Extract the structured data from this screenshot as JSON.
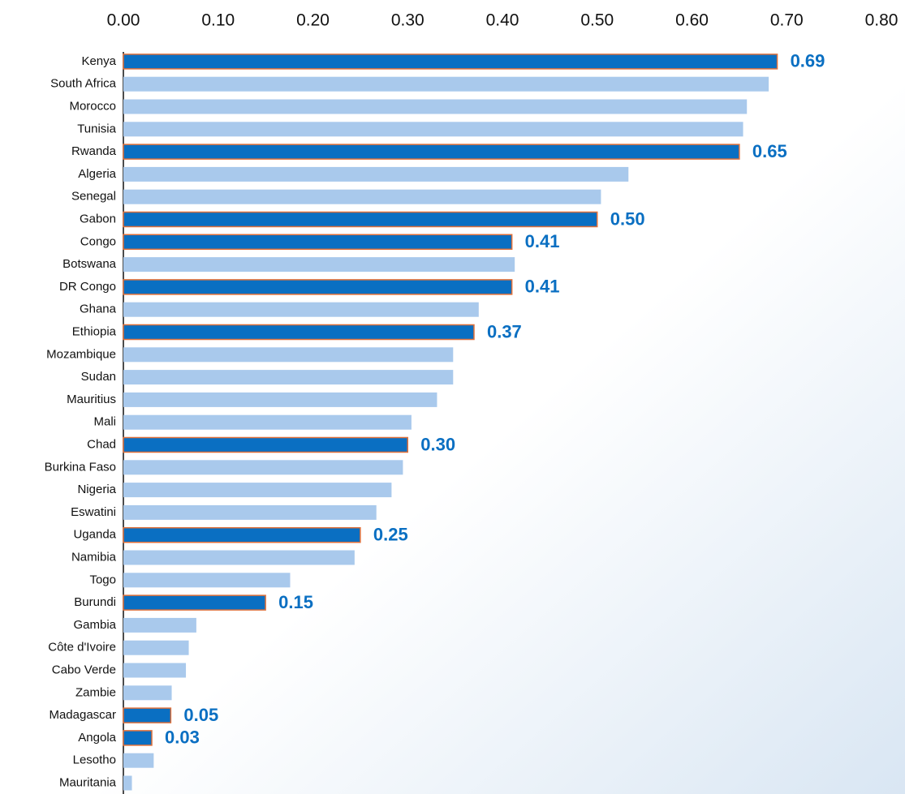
{
  "chart_data": {
    "type": "hbar",
    "categories": [
      "Kenya",
      "South Africa",
      "Morocco",
      "Tunisia",
      "Rwanda",
      "Algeria",
      "Senegal",
      "Gabon",
      "Congo",
      "Botswana",
      "DR Congo",
      "Ghana",
      "Ethiopia",
      "Mozambique",
      "Sudan",
      "Mauritius",
      "Mali",
      "Chad",
      "Burkina Faso",
      "Nigeria",
      "Eswatini",
      "Uganda",
      "Namibia",
      "Togo",
      "Burundi",
      "Gambia",
      "Côte d'Ivoire",
      "Cabo Verde",
      "Zambie",
      "Madagascar",
      "Angola",
      "Lesotho",
      "Mauritania"
    ],
    "values": [
      0.69,
      0.681,
      0.658,
      0.654,
      0.65,
      0.533,
      0.504,
      0.5,
      0.41,
      0.413,
      0.41,
      0.375,
      0.37,
      0.348,
      0.348,
      0.331,
      0.304,
      0.3,
      0.295,
      0.283,
      0.267,
      0.25,
      0.244,
      0.176,
      0.15,
      0.077,
      0.069,
      0.066,
      0.051,
      0.05,
      0.03,
      0.032,
      0.009
    ],
    "value_labels": [
      "0.69",
      null,
      null,
      null,
      "0.65",
      null,
      null,
      "0.50",
      "0.41",
      null,
      "0.41",
      null,
      "0.37",
      null,
      null,
      null,
      null,
      "0.30",
      null,
      null,
      null,
      "0.25",
      null,
      null,
      "0.15",
      null,
      null,
      null,
      null,
      "0.05",
      "0.03",
      null,
      null
    ],
    "color": "#a9c9ec",
    "highlight_color": "#0a6fc2",
    "highlight_edge_color": "#e0703a",
    "label_color": "#0a6fc2",
    "xlim": [
      0,
      0.8
    ],
    "xticks": [
      {
        "value": 0,
        "label": "0.00"
      },
      {
        "value": 0.1,
        "label": "0.10"
      },
      {
        "value": 0.2,
        "label": "0.20"
      },
      {
        "value": 0.3,
        "label": "0.30"
      },
      {
        "value": 0.4,
        "label": "0.40"
      },
      {
        "value": 0.5,
        "label": "0.50"
      },
      {
        "value": 0.6,
        "label": "0.60"
      },
      {
        "value": 0.7,
        "label": "0.70"
      },
      {
        "value": 0.8,
        "label": "0.80"
      }
    ],
    "grid": false
  }
}
